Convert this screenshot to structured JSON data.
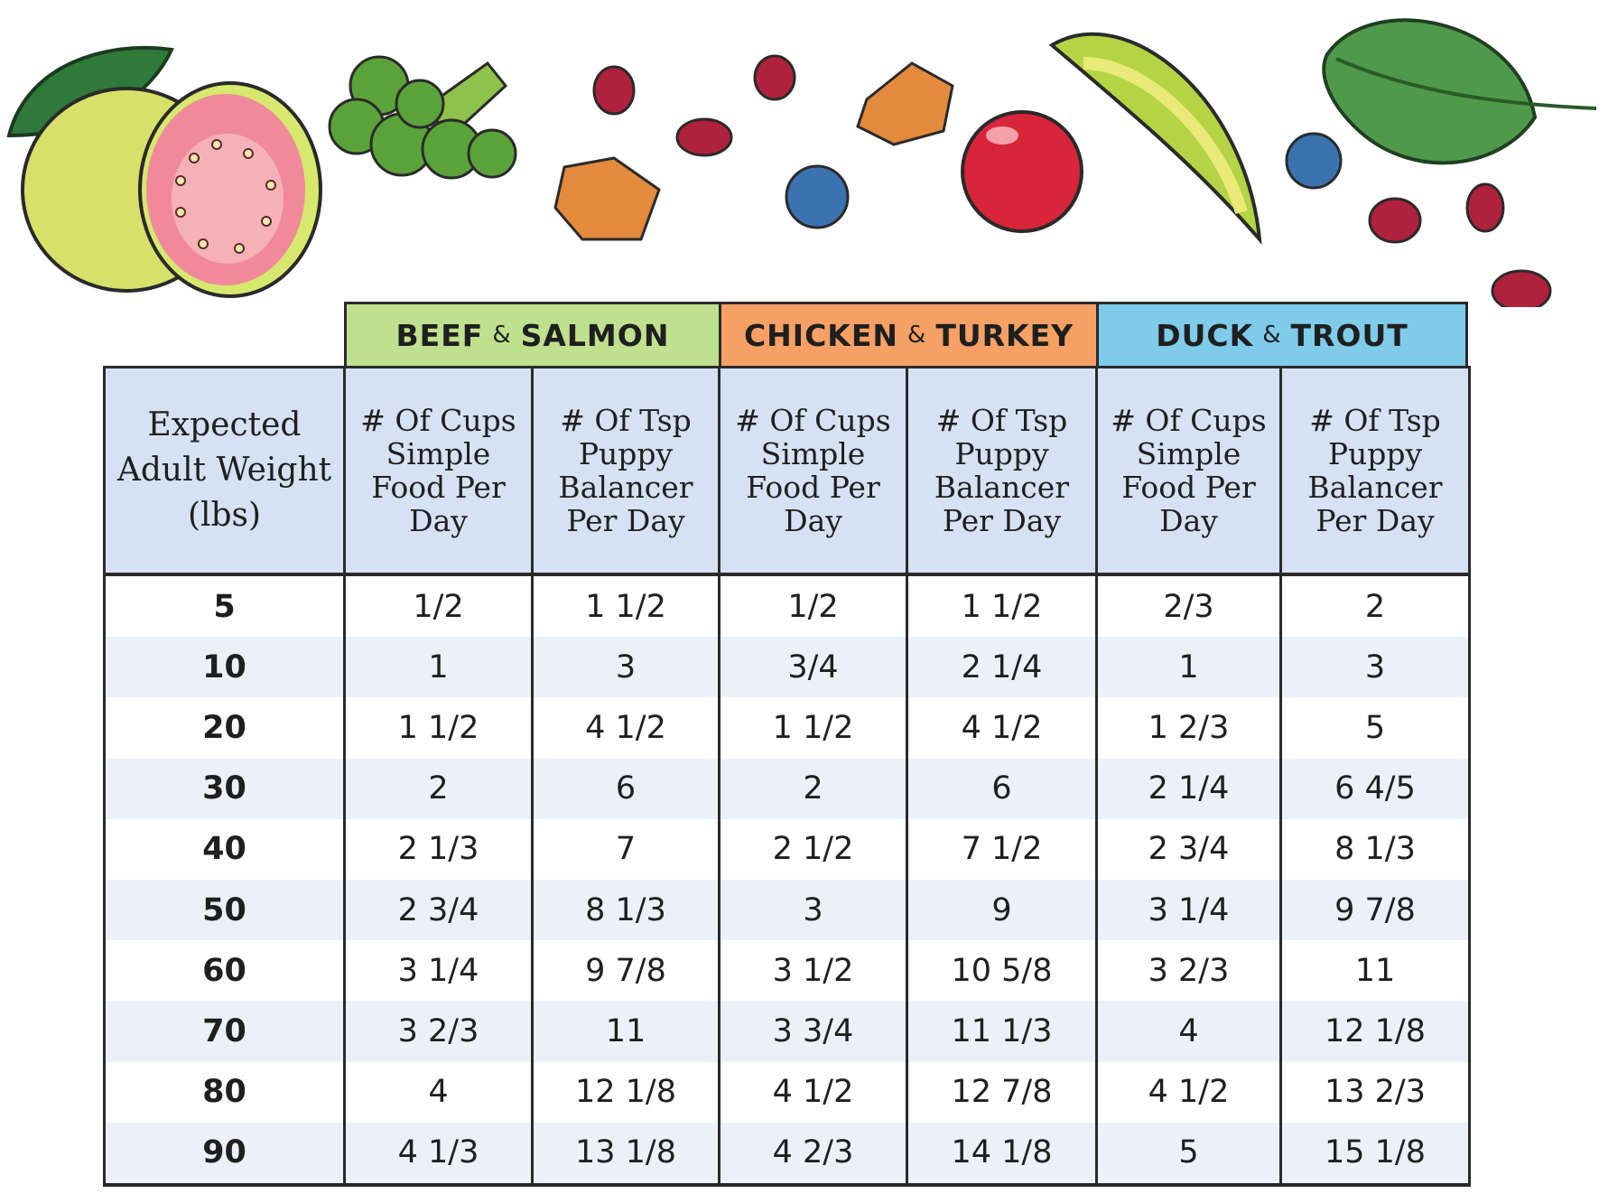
{
  "groups": [
    "BEEF & SALMON",
    "CHICKEN & TURKEY",
    "DUCK & TROUT"
  ],
  "group_parts": [
    {
      "a": "BEEF",
      "amp": "&",
      "b": "SALMON"
    },
    {
      "a": "CHICKEN",
      "amp": "&",
      "b": "TURKEY"
    },
    {
      "a": "DUCK",
      "amp": "&",
      "b": "TROUT"
    }
  ],
  "headers": {
    "weight": "Expected Adult Weight (lbs)",
    "cups": "# Of Cups Simple Food Per Day",
    "tsp": "# Of Tsp Puppy Balancer Per Day"
  },
  "rows": [
    [
      "5",
      "1/2",
      "1 1/2",
      "1/2",
      "1 1/2",
      "2/3",
      "2"
    ],
    [
      "10",
      "1",
      "3",
      "3/4",
      "2 1/4",
      "1",
      "3"
    ],
    [
      "20",
      "1 1/2",
      "4 1/2",
      "1 1/2",
      "4 1/2",
      "1 2/3",
      "5"
    ],
    [
      "30",
      "2",
      "6",
      "2",
      "6",
      "2 1/4",
      "6 4/5"
    ],
    [
      "40",
      "2 1/3",
      "7",
      "2 1/2",
      "7 1/2",
      "2 3/4",
      "8 1/3"
    ],
    [
      "50",
      "2 3/4",
      "8 1/3",
      "3",
      "9",
      "3 1/4",
      "9 7/8"
    ],
    [
      "60",
      "3 1/4",
      "9 7/8",
      "3 1/2",
      "10 5/8",
      "3 2/3",
      "11"
    ],
    [
      "70",
      "3 2/3",
      "11",
      "3 3/4",
      "11 1/3",
      "4",
      "12 1/8"
    ],
    [
      "80",
      "4",
      "12 1/8",
      "4 1/2",
      "12 7/8",
      "4 1/2",
      "13 2/3"
    ],
    [
      "90",
      "4 1/3",
      "13 1/8",
      "4 2/3",
      "14 1/8",
      "5",
      "15 1/8"
    ]
  ],
  "colors": {
    "beef_salmon": "#bfe08e",
    "chicken_turkey": "#f7a066",
    "duck_trout": "#7fcbea",
    "header_bg": "#d6e2f3",
    "alt_row": "#ecf1f9"
  },
  "illustrations": [
    "guava",
    "broccoli",
    "pomegranate-seed",
    "sweet-potato-cube",
    "blueberry",
    "cranberry",
    "avocado-slice",
    "spinach-leaf"
  ]
}
